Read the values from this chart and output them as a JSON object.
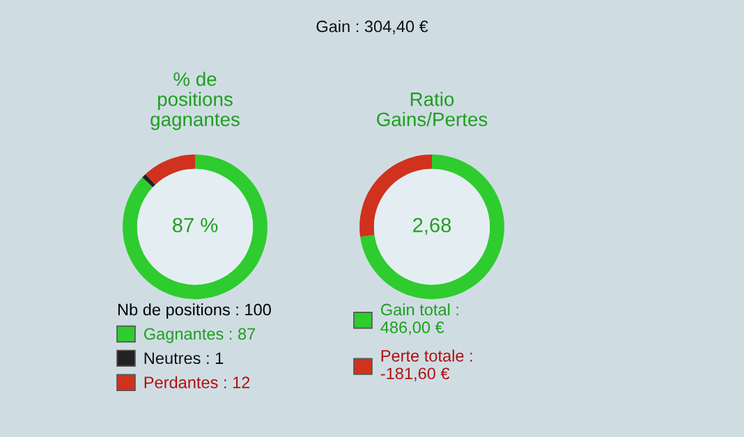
{
  "chart_data": [
    {
      "type": "donut",
      "title": "% de\npositions\ngagnantes",
      "categories": [
        "Gagnantes : 87",
        "Neutres : 1",
        "Perdantes : 12"
      ],
      "values": [
        87,
        1,
        12
      ],
      "colors": [
        "#2ecc2e",
        "#222222",
        "#d0321e"
      ],
      "legend": "bottom",
      "legend_title": "Nb de positions : 100",
      "annotations": [
        "87 %",
        "Gain : 304,40 €"
      ]
    },
    {
      "type": "donut",
      "title": "Ratio\nGains/Pertes",
      "categories": [
        "Gain total :\n486,00 €",
        "Perte totale :\n-181,60 €"
      ],
      "values": [
        486.0,
        181.6
      ],
      "colors": [
        "#2ecc2e",
        "#d0321e"
      ],
      "legend": "bottom",
      "annotations": [
        "2,68"
      ]
    }
  ]
}
